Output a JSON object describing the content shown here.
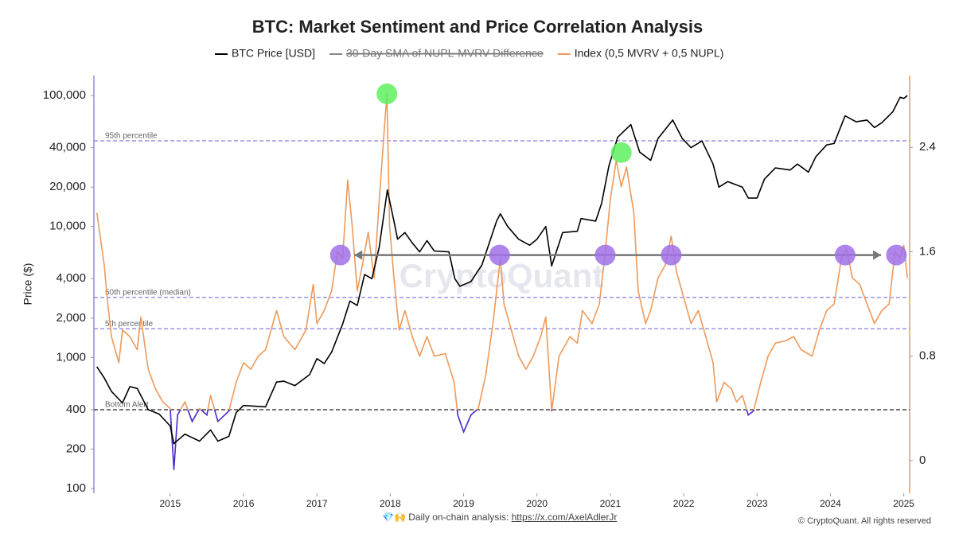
{
  "chart_data": {
    "type": "line",
    "title": "BTC: Market Sentiment and Price Correlation Analysis",
    "y_label": "Price ($)",
    "watermark": "CryptoQuant",
    "log_scale": true,
    "xlim": [
      2013.96,
      2025.08
    ],
    "xticks": [
      2015,
      2016,
      2017,
      2018,
      2019,
      2020,
      2021,
      2022,
      2023,
      2024,
      2025
    ],
    "ylim": [
      92,
      142000
    ],
    "yticks": [
      100,
      200,
      400,
      {
        "value": 1000,
        "label": "1,000"
      },
      {
        "value": 2000,
        "label": "2,000"
      },
      {
        "value": 4000,
        "label": "4,000"
      },
      {
        "value": 10000,
        "label": "10,000"
      },
      {
        "value": 20000,
        "label": "20,000"
      },
      {
        "value": 40000,
        "label": "40,000"
      },
      {
        "value": 100000,
        "label": "100,000"
      }
    ],
    "y2lim": [
      -0.25,
      2.95
    ],
    "y2ticks": [
      0,
      0.8,
      1.6,
      2.4
    ],
    "series": [
      {
        "name": "BTC Price [USD]",
        "color": "#000000",
        "x": [
          2014.0,
          2014.1,
          2014.2,
          2014.35,
          2014.45,
          2014.55,
          2014.7,
          2014.85,
          2015.0,
          2015.05,
          2015.2,
          2015.4,
          2015.55,
          2015.65,
          2015.8,
          2015.9,
          2016.0,
          2016.3,
          2016.45,
          2016.55,
          2016.7,
          2016.9,
          2017.0,
          2017.1,
          2017.2,
          2017.35,
          2017.45,
          2017.55,
          2017.65,
          2017.75,
          2017.85,
          2017.96,
          2018.05,
          2018.1,
          2018.2,
          2018.3,
          2018.4,
          2018.5,
          2018.6,
          2018.8,
          2018.88,
          2018.95,
          2019.1,
          2019.25,
          2019.45,
          2019.5,
          2019.6,
          2019.75,
          2019.9,
          2020.0,
          2020.12,
          2020.2,
          2020.35,
          2020.55,
          2020.6,
          2020.8,
          2020.88,
          2020.98,
          2021.1,
          2021.28,
          2021.4,
          2021.55,
          2021.65,
          2021.85,
          2021.98,
          2022.1,
          2022.25,
          2022.4,
          2022.48,
          2022.6,
          2022.8,
          2022.88,
          2023.0,
          2023.1,
          2023.25,
          2023.45,
          2023.55,
          2023.7,
          2023.8,
          2023.95,
          2024.05,
          2024.2,
          2024.35,
          2024.5,
          2024.6,
          2024.7,
          2024.85,
          2024.95,
          2025.0,
          2025.05
        ],
        "values": [
          850,
          700,
          550,
          450,
          600,
          580,
          400,
          370,
          300,
          220,
          260,
          230,
          280,
          230,
          250,
          380,
          430,
          420,
          650,
          660,
          610,
          740,
          980,
          900,
          1100,
          1800,
          2700,
          2500,
          4300,
          4000,
          7000,
          19000,
          11000,
          8000,
          9000,
          7500,
          6400,
          7800,
          6500,
          6400,
          4000,
          3500,
          3800,
          5100,
          11000,
          12500,
          10000,
          8000,
          7200,
          8000,
          10000,
          5000,
          9000,
          9200,
          11500,
          11000,
          15000,
          29000,
          48000,
          60000,
          37000,
          32000,
          47000,
          65000,
          47000,
          40000,
          45000,
          30000,
          20000,
          22000,
          20000,
          16500,
          16500,
          23000,
          28000,
          27000,
          30000,
          26000,
          34000,
          42000,
          43000,
          70000,
          63000,
          65000,
          57000,
          62000,
          75000,
          97000,
          95000,
          100000
        ]
      },
      {
        "name": "30-Day SMA of NUPL-MVRV Difference",
        "color": "#888888",
        "visible": false
      },
      {
        "name": "Index (0,5 MVRV + 0,5 NUPL)",
        "color": "#ee9a5a",
        "axis": "y2",
        "x": [
          2014.0,
          2014.05,
          2014.1,
          2014.15,
          2014.2,
          2014.3,
          2014.35,
          2014.45,
          2014.55,
          2014.6,
          2014.7,
          2014.8,
          2014.9,
          2015.0,
          2015.05,
          2015.1,
          2015.2,
          2015.3,
          2015.4,
          2015.5,
          2015.55,
          2015.65,
          2015.8,
          2015.9,
          2016.0,
          2016.1,
          2016.2,
          2016.3,
          2016.45,
          2016.55,
          2016.7,
          2016.85,
          2016.95,
          2017.0,
          2017.1,
          2017.2,
          2017.28,
          2017.35,
          2017.42,
          2017.48,
          2017.55,
          2017.62,
          2017.7,
          2017.78,
          2017.85,
          2017.92,
          2017.955,
          2017.99,
          2018.05,
          2018.12,
          2018.2,
          2018.3,
          2018.4,
          2018.5,
          2018.6,
          2018.75,
          2018.87,
          2018.92,
          2019.0,
          2019.1,
          2019.2,
          2019.3,
          2019.4,
          2019.5,
          2019.55,
          2019.65,
          2019.75,
          2019.85,
          2019.95,
          2020.05,
          2020.12,
          2020.2,
          2020.3,
          2020.45,
          2020.55,
          2020.62,
          2020.75,
          2020.85,
          2020.93,
          2021.0,
          2021.08,
          2021.15,
          2021.22,
          2021.32,
          2021.38,
          2021.48,
          2021.55,
          2021.65,
          2021.75,
          2021.83,
          2021.9,
          2022.0,
          2022.1,
          2022.2,
          2022.3,
          2022.4,
          2022.45,
          2022.55,
          2022.65,
          2022.72,
          2022.8,
          2022.88,
          2022.95,
          2023.05,
          2023.15,
          2023.25,
          2023.4,
          2023.5,
          2023.6,
          2023.75,
          2023.85,
          2023.95,
          2024.05,
          2024.15,
          2024.22,
          2024.3,
          2024.4,
          2024.5,
          2024.6,
          2024.7,
          2024.8,
          2024.88,
          2024.95,
          2025.0,
          2025.05
        ],
        "values": [
          1.9,
          1.7,
          1.5,
          1.2,
          0.95,
          0.75,
          1.0,
          0.95,
          0.85,
          1.1,
          0.7,
          0.55,
          0.45,
          0.4,
          -0.07,
          0.35,
          0.45,
          0.3,
          0.4,
          0.35,
          0.5,
          0.3,
          0.38,
          0.6,
          0.75,
          0.7,
          0.8,
          0.85,
          1.15,
          0.95,
          0.85,
          1.0,
          1.35,
          1.05,
          1.15,
          1.3,
          1.6,
          1.55,
          2.15,
          1.8,
          1.3,
          1.5,
          1.75,
          1.4,
          2.0,
          2.55,
          2.81,
          1.8,
          1.4,
          1.0,
          1.15,
          0.95,
          0.8,
          0.95,
          0.8,
          0.82,
          0.6,
          0.35,
          0.22,
          0.35,
          0.4,
          0.65,
          1.05,
          1.55,
          1.2,
          1.0,
          0.8,
          0.7,
          0.8,
          0.95,
          1.1,
          0.38,
          0.8,
          0.95,
          0.9,
          1.15,
          1.05,
          1.2,
          1.6,
          2.0,
          2.3,
          2.1,
          2.25,
          1.9,
          1.3,
          1.05,
          1.15,
          1.4,
          1.5,
          1.72,
          1.45,
          1.25,
          1.05,
          1.15,
          0.95,
          0.75,
          0.45,
          0.6,
          0.55,
          0.45,
          0.5,
          0.35,
          0.38,
          0.6,
          0.8,
          0.9,
          0.92,
          0.95,
          0.85,
          0.8,
          1.0,
          1.15,
          1.2,
          1.55,
          1.62,
          1.4,
          1.35,
          1.2,
          1.05,
          1.15,
          1.2,
          1.6,
          1.55,
          1.65,
          1.4
        ]
      }
    ],
    "reference_lines": [
      {
        "label": "95th percentile",
        "value": 2.45,
        "color": "#8a7be0"
      },
      {
        "label": "50th percentile (median)",
        "value": 1.25,
        "color": "#8a7be0"
      },
      {
        "label": "5th percentile",
        "value": 1.01,
        "color": "#8a7be0"
      },
      {
        "label": "Bottom Alert",
        "value": 0.39,
        "color": "#222222",
        "highlight_color": "#4a2fd8"
      }
    ],
    "markers": [
      {
        "x": 2017.955,
        "y": 2.81,
        "color": "#5ef05e"
      },
      {
        "x": 2021.15,
        "y": 2.36,
        "color": "#5ef05e"
      },
      {
        "x": 2017.32,
        "y": 1.575,
        "color": "#a070e8"
      },
      {
        "x": 2019.49,
        "y": 1.575,
        "color": "#a070e8"
      },
      {
        "x": 2020.93,
        "y": 1.575,
        "color": "#a070e8"
      },
      {
        "x": 2021.83,
        "y": 1.575,
        "color": "#a070e8"
      },
      {
        "x": 2024.2,
        "y": 1.575,
        "color": "#a070e8"
      },
      {
        "x": 2024.9,
        "y": 1.575,
        "color": "#a070e8"
      }
    ],
    "arrow": {
      "x": [
        2017.51,
        2024.69
      ],
      "y": 1.575,
      "color": "#777777"
    }
  },
  "footer": {
    "text": "💎🙌 Daily on-chain analysis: ",
    "link": "https://x.com/AxelAdlerJr",
    "copyright": "© CryptoQuant. All rights reserved"
  }
}
